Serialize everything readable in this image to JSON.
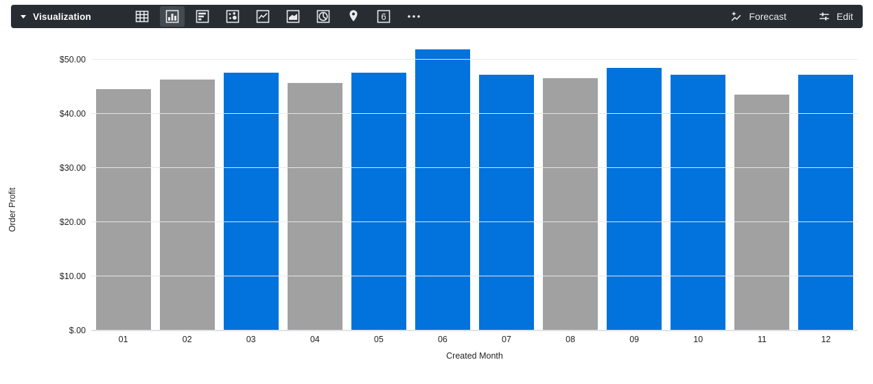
{
  "toolbar": {
    "background": "#272d33",
    "selector_label": "Visualization",
    "chart_types": [
      {
        "name": "table",
        "selected": false
      },
      {
        "name": "column",
        "selected": true
      },
      {
        "name": "bar",
        "selected": false
      },
      {
        "name": "scatter",
        "selected": false
      },
      {
        "name": "line",
        "selected": false
      },
      {
        "name": "area",
        "selected": false
      },
      {
        "name": "pie",
        "selected": false
      },
      {
        "name": "map",
        "selected": false
      },
      {
        "name": "single-value",
        "selected": false
      },
      {
        "name": "more",
        "selected": false
      }
    ],
    "single_value_glyph": "6",
    "forecast_label": "Forecast",
    "edit_label": "Edit"
  },
  "chart_data": {
    "type": "bar",
    "title": "",
    "categories": [
      "01",
      "02",
      "03",
      "04",
      "05",
      "06",
      "07",
      "08",
      "09",
      "10",
      "11",
      "12"
    ],
    "values": [
      44.5,
      46.3,
      47.5,
      45.6,
      47.5,
      51.9,
      47.2,
      46.5,
      48.4,
      47.2,
      43.5,
      47.2
    ],
    "bar_colors": [
      "gray",
      "gray",
      "blue",
      "gray",
      "blue",
      "blue",
      "blue",
      "gray",
      "blue",
      "blue",
      "gray",
      "blue"
    ],
    "colors": {
      "gray": "#a1a1a1",
      "blue": "#0272dc"
    },
    "xlabel": "Created Month",
    "ylabel": "Order Profit",
    "y_ticks": [
      "$50.00",
      "$40.00",
      "$30.00",
      "$20.00",
      "$10.00",
      "$.00"
    ],
    "y_tick_values": [
      50,
      40,
      30,
      20,
      10,
      0
    ],
    "ylim": [
      0,
      55
    ],
    "grid": true,
    "legend": "none"
  }
}
